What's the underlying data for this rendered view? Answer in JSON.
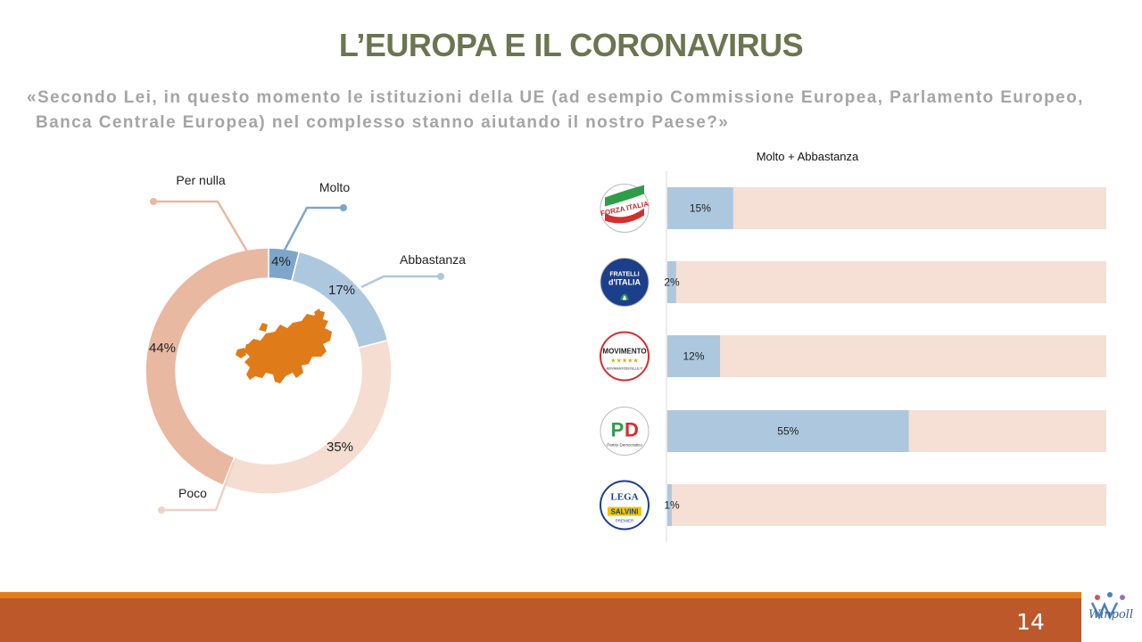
{
  "header": {
    "title": "L’EUROPA E IL CORONAVIRUS",
    "question_line1": "«Secondo Lei, in questo momento le istituzioni della UE (ad esempio Commissione Europea, Parlamento Europeo,",
    "question_line2": "Banca Centrale Europea) nel complesso stanno aiutando il nostro Paese?»"
  },
  "chart_data": [
    {
      "type": "pie",
      "variant": "donut",
      "labels": [
        "Molto",
        "Abbastanza",
        "Poco",
        "Per nulla"
      ],
      "values": [
        4,
        17,
        35,
        44
      ],
      "value_labels": [
        "4%",
        "17%",
        "35%",
        "44%"
      ],
      "colors": [
        "#7ea6cb",
        "#adc8de",
        "#f5ddd2",
        "#e9b8a1"
      ],
      "center_icon": "europe-map-icon",
      "center_icon_color": "#e07b1a"
    },
    {
      "type": "bar",
      "orientation": "horizontal",
      "title": "Molto + Abbastanza",
      "categories": [
        "Forza Italia",
        "Fratelli d'Italia",
        "Movimento 5 Stelle",
        "Partito Democratico",
        "Lega Salvini Premier"
      ],
      "category_icons": [
        "forza-italia-logo-icon",
        "fratelli-ditalia-logo-icon",
        "movimento-5-stelle-logo-icon",
        "partito-democratico-logo-icon",
        "lega-salvini-logo-icon"
      ],
      "values": [
        15,
        2,
        12,
        55,
        1
      ],
      "value_labels": [
        "15%",
        "2%",
        "12%",
        "55%",
        "1%"
      ],
      "xlim": [
        0,
        100
      ],
      "colors": {
        "value": "#adc8de",
        "remainder": "#f6dfd5"
      }
    }
  ],
  "logos": {
    "forza_italia": "FORZA ITALIA",
    "fratelli_1": "FRATELLI",
    "fratelli_2": "d'ITALIA",
    "movimento": "MOVIMENTO",
    "movimento_sub": "MOVIMENTO5STELLE.IT",
    "pd_letters": "PD",
    "pd_sub": "Partito Democratico",
    "lega": "LEGA",
    "salvini": "SALVINI",
    "premier": "PREMIER"
  },
  "footer": {
    "page_number": "14",
    "brand": "Winpoll"
  }
}
